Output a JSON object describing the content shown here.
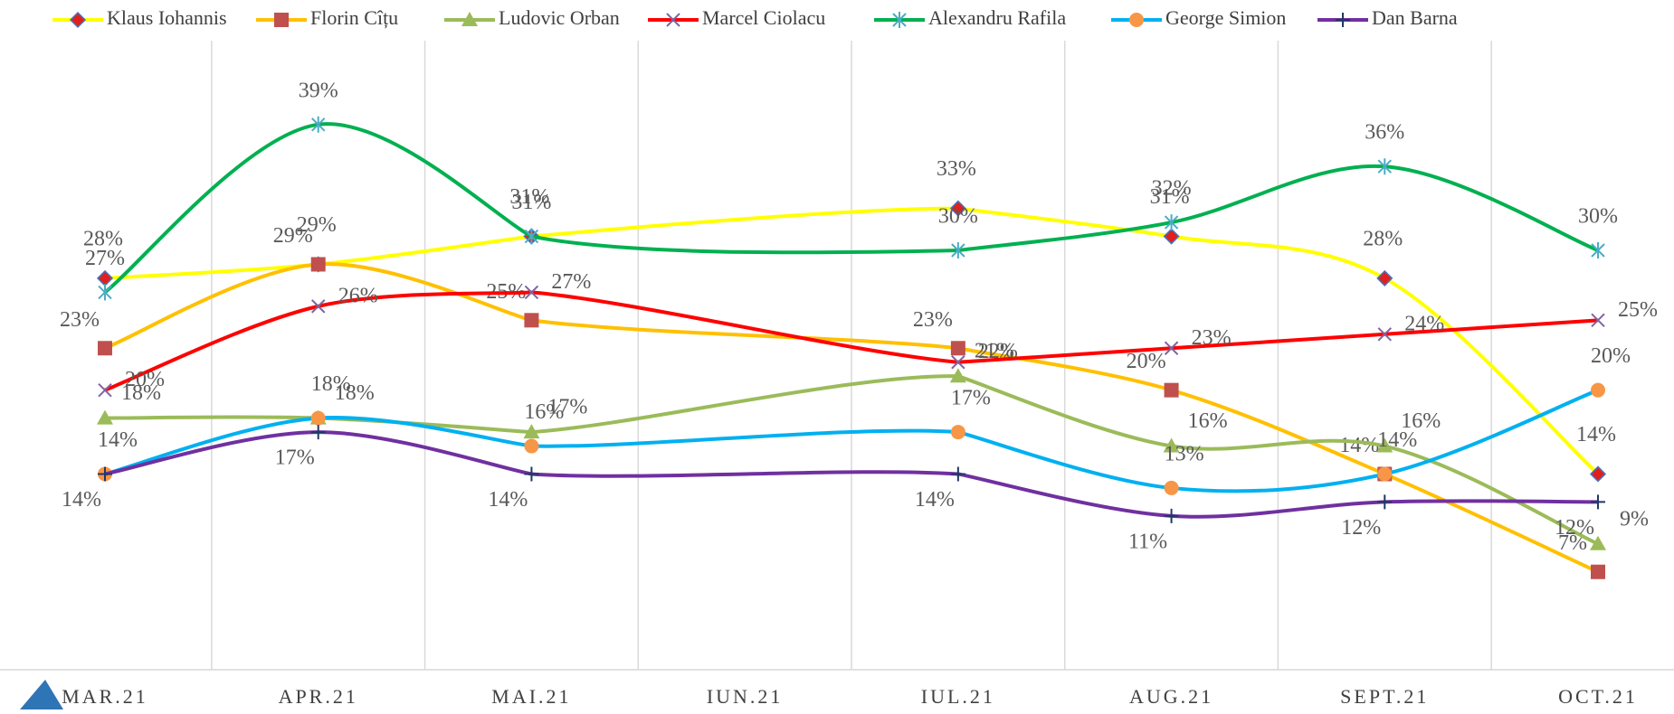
{
  "chart_data": {
    "type": "line",
    "smooth": true,
    "connect_gaps": true,
    "categories": [
      "MAR.21",
      "APR.21",
      "MAI.21",
      "IUN.21",
      "IUL.21",
      "AUG.21",
      "SEPT.21",
      "OCT.21"
    ],
    "ylim": [
      0,
      45
    ],
    "legend": "top",
    "series": [
      {
        "name": "Klaus Iohannis",
        "color": "#ffff00",
        "marker": "diamond",
        "marker_color": "#e0201b",
        "values": [
          28,
          29,
          31,
          null,
          33,
          31,
          28,
          14
        ],
        "value_labels": [
          "28%",
          "29%",
          "31%",
          null,
          "33%",
          "31%",
          "28%",
          "14%"
        ]
      },
      {
        "name": "Florin Cîțu",
        "color": "#ffc000",
        "marker": "square",
        "marker_color": "#c0504d",
        "values": [
          23,
          29,
          25,
          null,
          23,
          20,
          14,
          7
        ],
        "value_labels": [
          "23%",
          "29%",
          "25%",
          null,
          "23%",
          "20%",
          "14%",
          "7%"
        ]
      },
      {
        "name": "Ludovic Orban",
        "color": "#9bbb59",
        "marker": "triangle",
        "marker_color": "#9bbb59",
        "values": [
          18,
          18,
          17,
          null,
          21,
          16,
          16,
          9
        ],
        "value_labels": [
          "18%",
          "18%",
          "17%",
          null,
          "21%",
          "16%",
          "16%",
          "9%"
        ]
      },
      {
        "name": "Marcel Ciolacu",
        "color": "#ff0000",
        "marker": "x",
        "marker_color": "#8064a2",
        "values": [
          20,
          26,
          27,
          null,
          22,
          23,
          24,
          25
        ],
        "value_labels": [
          "20%",
          "26%",
          "27%",
          null,
          "22%",
          "23%",
          "24%",
          "25%"
        ]
      },
      {
        "name": "Alexandru Rafila",
        "color": "#00b050",
        "marker": "star",
        "marker_color": "#4bacc6",
        "values": [
          27,
          39,
          31,
          null,
          30,
          32,
          36,
          30
        ],
        "value_labels": [
          "27%",
          "39%",
          "31%",
          null,
          "30%",
          "32%",
          "36%",
          "30%"
        ]
      },
      {
        "name": "George Simion",
        "color": "#00b0f0",
        "marker": "circle",
        "marker_color": "#f79646",
        "values": [
          14,
          18,
          16,
          null,
          17,
          13,
          14,
          20
        ],
        "value_labels": [
          "14%",
          "18%",
          "16%",
          null,
          "17%",
          "13%",
          "14%",
          "20%"
        ]
      },
      {
        "name": "Dan Barna",
        "color": "#7030a0",
        "marker": "plus",
        "marker_color": "#1f3864",
        "values": [
          14,
          17,
          14,
          null,
          14,
          11,
          12,
          12
        ],
        "value_labels": [
          "14%",
          "17%",
          "14%",
          null,
          "14%",
          "11%",
          "12%",
          "12%"
        ]
      }
    ]
  }
}
